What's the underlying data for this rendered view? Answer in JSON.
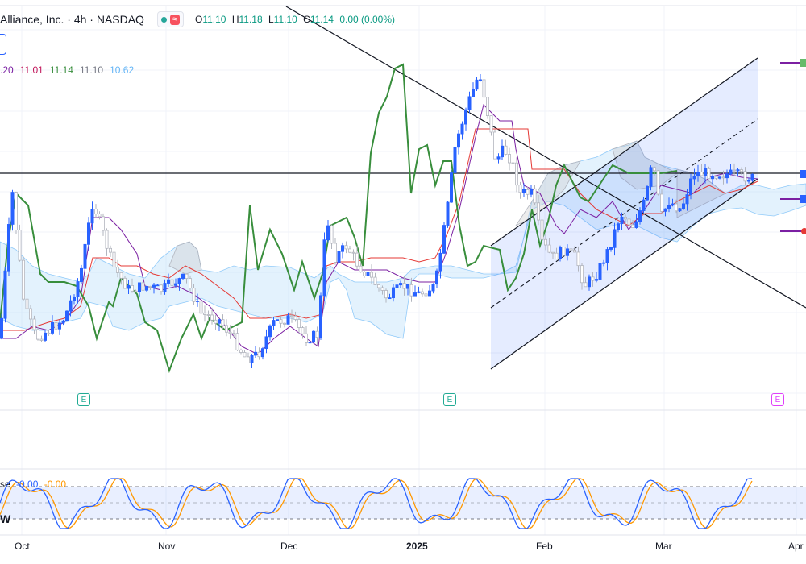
{
  "header": {
    "symbol_title": "Alliance, Inc. · 4h · NASDAQ",
    "approx_badge": "≈",
    "ohlc": [
      {
        "key": "O",
        "value": "11.10"
      },
      {
        "key": "H",
        "value": "11.18"
      },
      {
        "key": "L",
        "value": "11.10"
      },
      {
        "key": "C",
        "value": "11.14"
      }
    ],
    "change": "0.00 (0.00%)"
  },
  "indicator_values": [
    {
      "text": ".20",
      "color": "#7b1fa2"
    },
    {
      "text": "11.01",
      "color": "#c2185b"
    },
    {
      "text": "11.14",
      "color": "#388e3c"
    },
    {
      "text": "11.10",
      "color": "#787b86"
    },
    {
      "text": "10.62",
      "color": "#64b5f6"
    }
  ],
  "oscillator_legend": {
    "label": "se",
    "value1": "-0.00",
    "value2": "-0.00",
    "color1": "#2962ff",
    "color2": "#ff9800"
  },
  "logo_text": "W",
  "x_axis": [
    {
      "label": "Oct",
      "bold": false
    },
    {
      "label": "Nov",
      "bold": false
    },
    {
      "label": "Dec",
      "bold": false
    },
    {
      "label": "2025",
      "bold": true
    },
    {
      "label": "Feb",
      "bold": false
    },
    {
      "label": "Mar",
      "bold": false
    },
    {
      "label": "Apr",
      "bold": false
    }
  ],
  "earnings_markers": [
    {
      "label": "E",
      "kind": "past"
    },
    {
      "label": "E",
      "kind": "past"
    },
    {
      "label": "E",
      "kind": "future"
    }
  ],
  "colors": {
    "up": "#2962ff",
    "down": "#b2b5be",
    "tenkan": "#7b1fa2",
    "kijun": "#e53935",
    "chikou": "#388e3c",
    "cloud": "#90caf9",
    "channel": "#2962ff"
  }
}
